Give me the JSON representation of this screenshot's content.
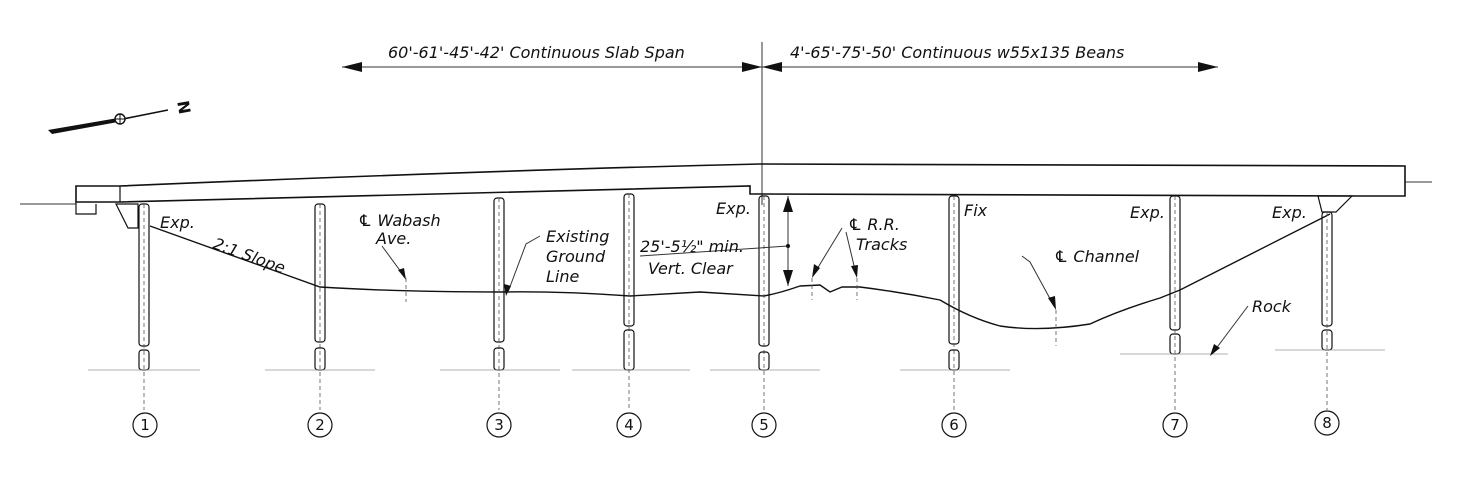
{
  "spans": {
    "left_label": "60'-61'-45'-42' Continuous  Slab Span",
    "right_label": "4'-65'-75'-50' Continuous w55x135 Beans"
  },
  "north_arrow": {
    "letter": "N",
    "icon": "north-arrow-icon"
  },
  "notes": {
    "exp_1": "Exp.",
    "slope": "2:1 Slope",
    "wabash_1": "℄ Wabash",
    "wabash_2": "Ave.",
    "ground_1": "Existing",
    "ground_2": "Ground",
    "ground_3": "Line",
    "exp_5": "Exp.",
    "clear_1": "25'-5½\" min.",
    "clear_2": "Vert. Clear",
    "rr_1": "℄ R.R.",
    "rr_2": "Tracks",
    "fix_6": "Fix",
    "channel": "℄ Channel",
    "exp_7": "Exp.",
    "exp_8": "Exp.",
    "rock": "Rock"
  },
  "piers": [
    "1",
    "2",
    "3",
    "4",
    "5",
    "6",
    "7",
    "8"
  ]
}
